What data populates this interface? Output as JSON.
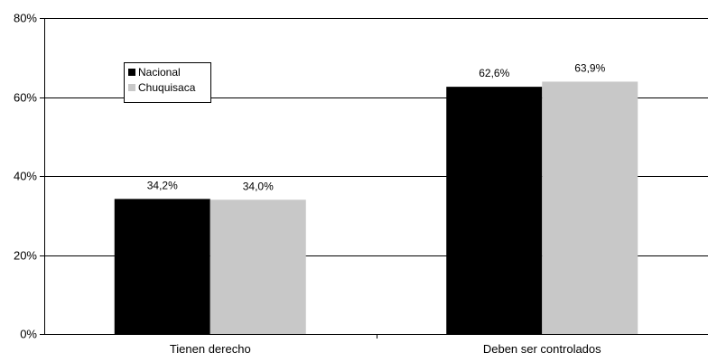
{
  "chart_data": {
    "type": "bar",
    "categories": [
      "Tienen derecho",
      "Deben ser controlados"
    ],
    "series": [
      {
        "name": "Nacional",
        "values": [
          34.2,
          62.6
        ],
        "labels": [
          "34,2%",
          "62,6%"
        ],
        "color": "#000000"
      },
      {
        "name": "Chuquisaca",
        "values": [
          34.0,
          63.9
        ],
        "labels": [
          "34,0%",
          "63,9%"
        ],
        "color": "#c8c8c8"
      }
    ],
    "ylim": [
      0,
      80
    ],
    "yticks": [
      0,
      20,
      40,
      60,
      80
    ],
    "ytick_labels": [
      "0%",
      "20%",
      "40%",
      "60%",
      "80%"
    ],
    "title": "",
    "xlabel": "",
    "ylabel": "",
    "grid": true,
    "legend_position": "top-left"
  }
}
